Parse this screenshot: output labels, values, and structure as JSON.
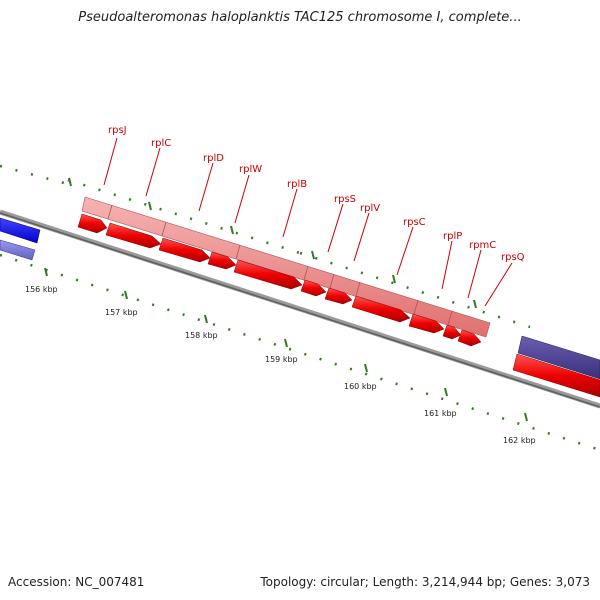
{
  "title": "Pseudoalteromonas haloplanktis TAC125 chromosome I, complete...",
  "tick_labels": [
    "156 kbp",
    "157 kbp",
    "158 kbp",
    "159 kbp",
    "160 kbp",
    "161 kbp",
    "162 kbp"
  ],
  "gene_labels": [
    "rpsJ",
    "rplC",
    "rplD",
    "rplW",
    "rplB",
    "rpsS",
    "rplV",
    "rpsC",
    "rplP",
    "rpmC",
    "rpsQ"
  ],
  "colors": {
    "backbone": "#888888",
    "tick": "#2e7d1e",
    "gene_red": "#ee0000",
    "gene_pink": "#ee8080",
    "gene_blue": "#0000ee",
    "gene_lightblue": "#7777dd",
    "gene_indigo": "#4b3f8f",
    "label_red": "#cc0000"
  },
  "footer": {
    "accession": "Accession: NC_007481",
    "summary": "Topology: circular; Length: 3,214,944 bp; Genes: 3,073"
  }
}
